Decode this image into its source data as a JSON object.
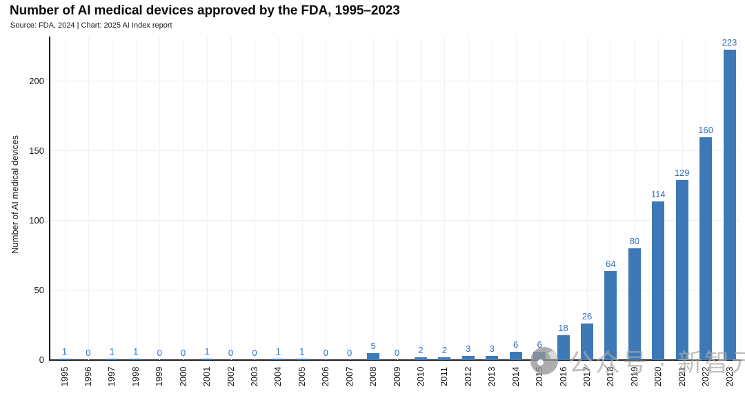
{
  "header": {
    "title": "Number of AI medical devices approved by the FDA, 1995–2023",
    "subtitle": "Source: FDA, 2024 | Chart: 2025 AI Index report"
  },
  "chart_data": {
    "type": "bar",
    "title": "Number of AI medical devices approved by the FDA, 1995–2023",
    "xlabel": "",
    "ylabel": "Number of AI medical devices",
    "categories": [
      "1995",
      "1996",
      "1997",
      "1998",
      "1999",
      "2000",
      "2001",
      "2002",
      "2003",
      "2004",
      "2005",
      "2006",
      "2007",
      "2008",
      "2009",
      "2010",
      "2011",
      "2012",
      "2013",
      "2014",
      "2015",
      "2016",
      "2017",
      "2018",
      "2019",
      "2020",
      "2021",
      "2022",
      "2023"
    ],
    "values": [
      1,
      0,
      1,
      1,
      0,
      0,
      1,
      0,
      0,
      1,
      1,
      0,
      0,
      5,
      0,
      2,
      2,
      3,
      3,
      6,
      6,
      18,
      26,
      64,
      80,
      114,
      129,
      160,
      223
    ],
    "yticks": [
      0,
      50,
      100,
      150,
      200
    ],
    "ylim": [
      0,
      232
    ],
    "grid": true,
    "legend": "none",
    "data_labels": true,
    "bar_color": "#3d79b7",
    "value_label_color": "#2f6fc1"
  },
  "watermark": {
    "text": "公众号 · 新智元",
    "logo": "xinzhiyuan-logo"
  }
}
